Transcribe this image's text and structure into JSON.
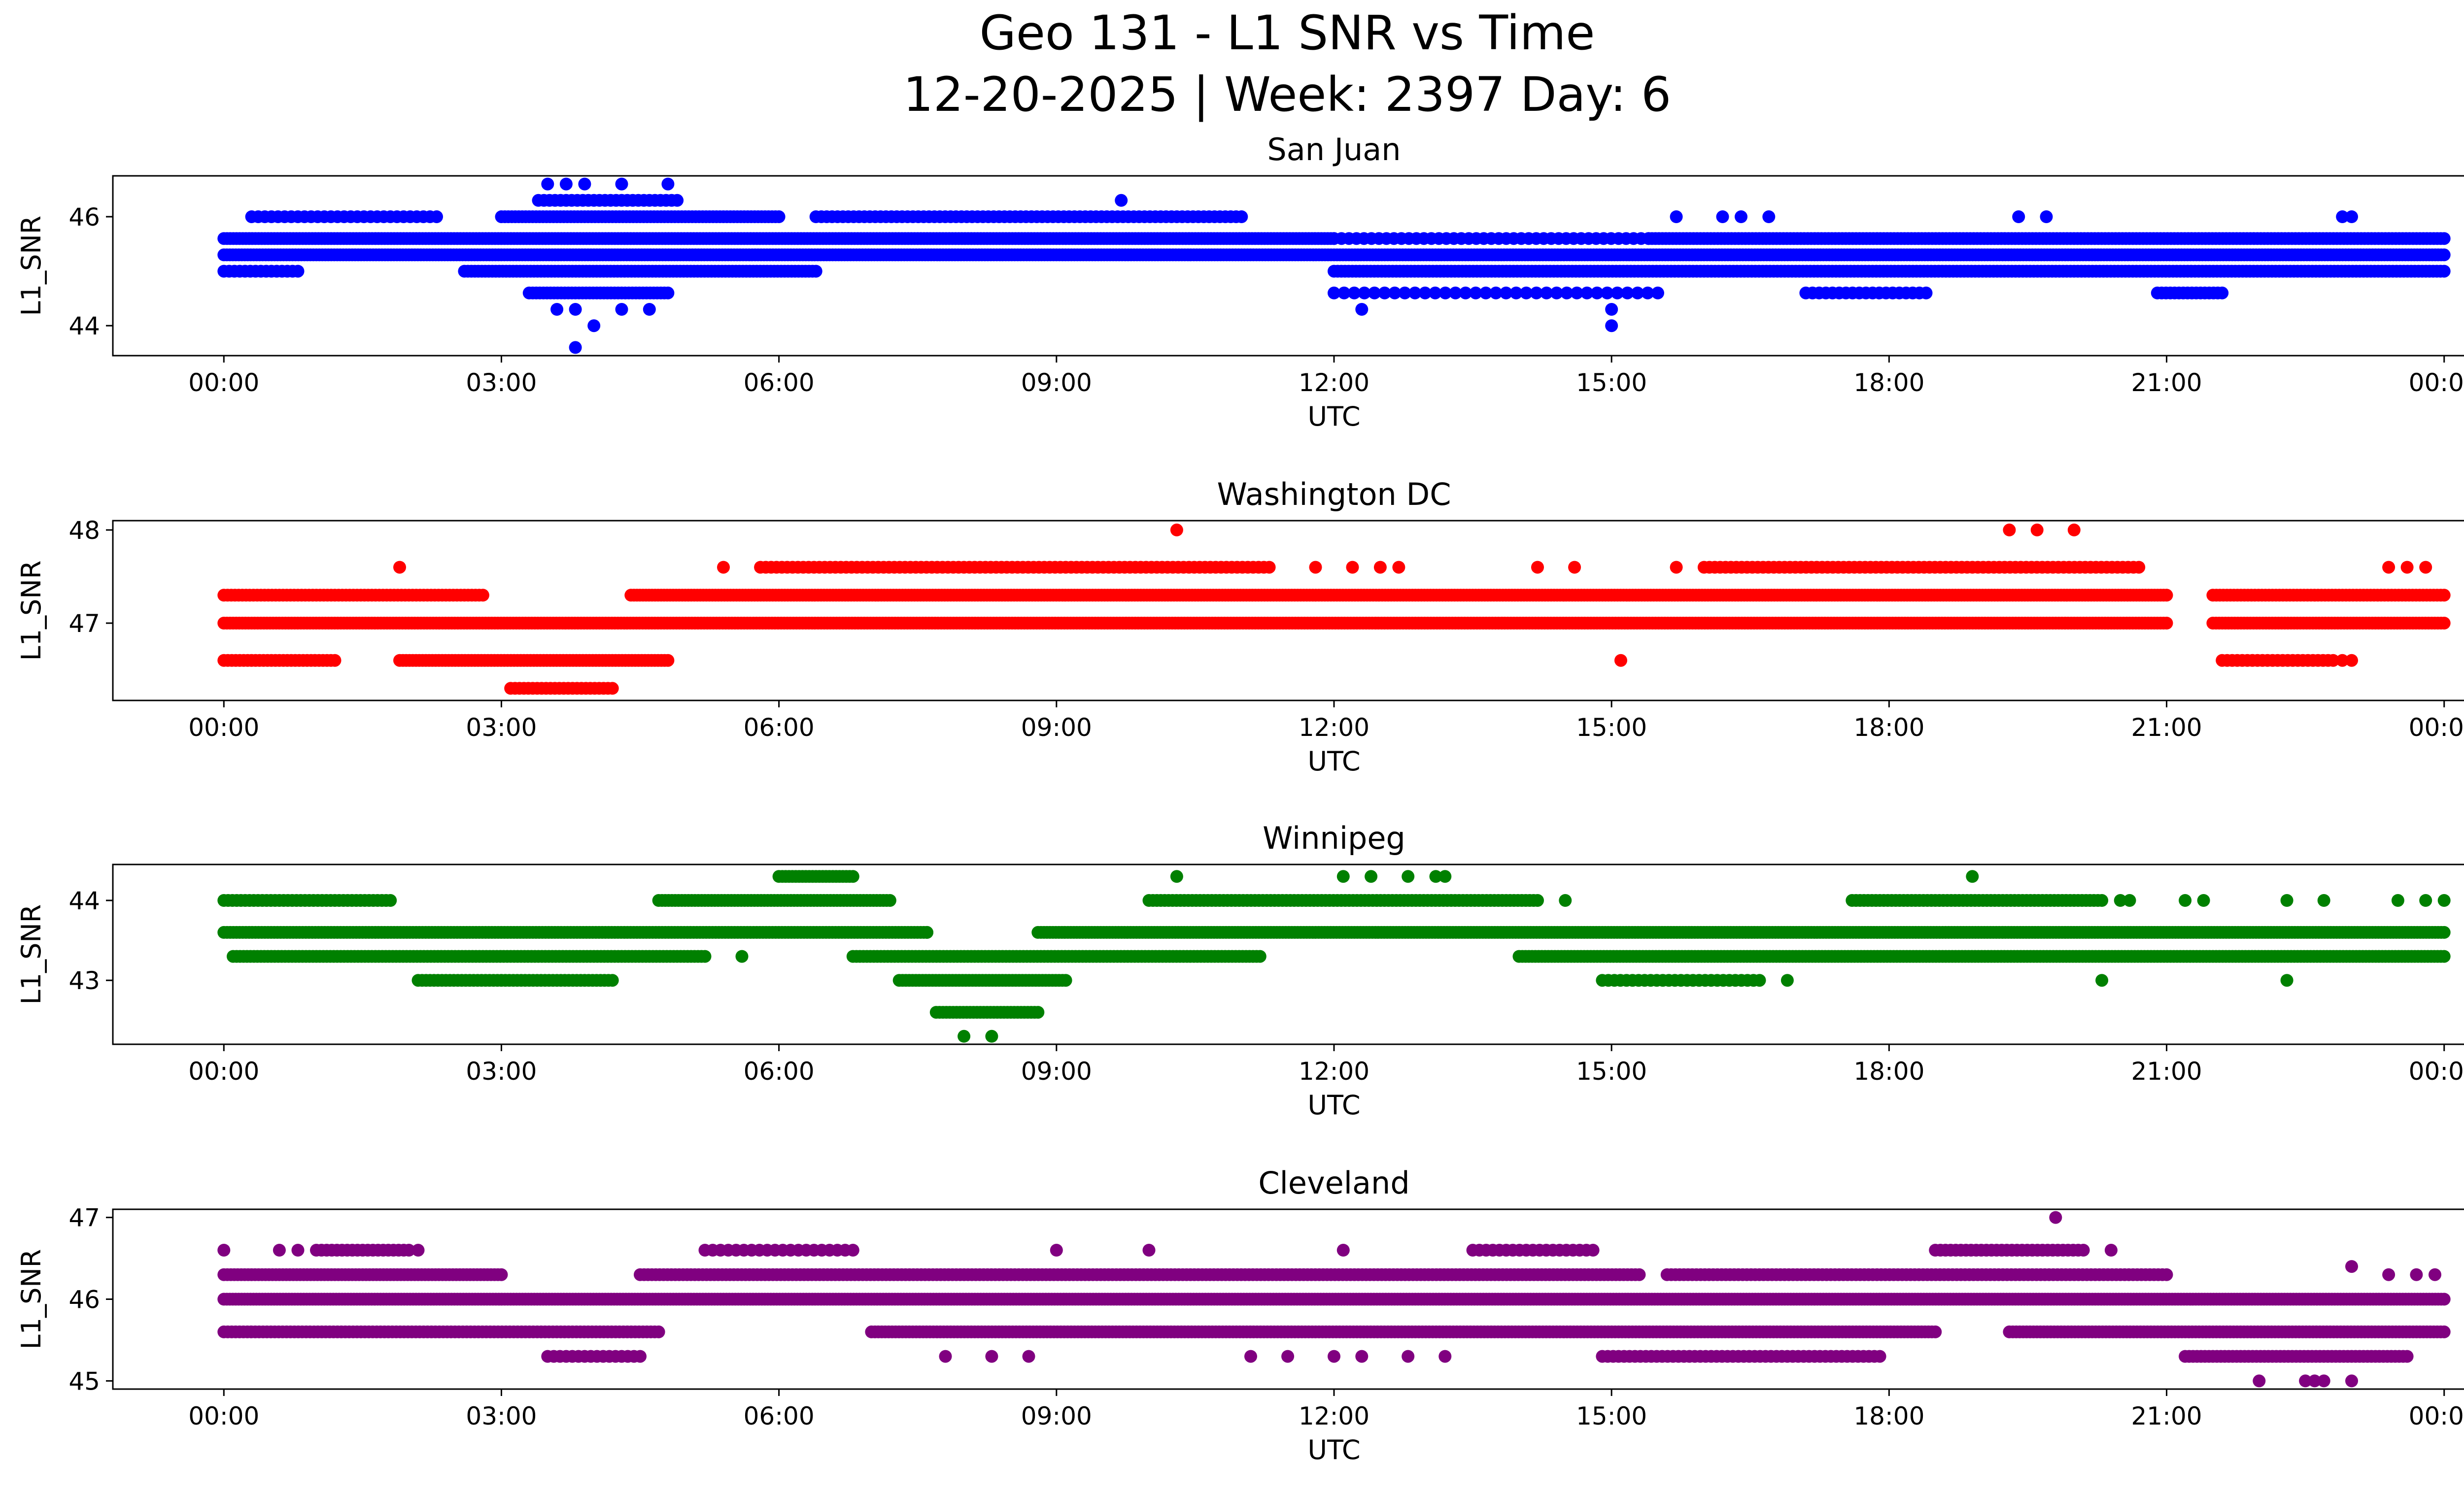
{
  "figure_title_line1": "Geo 131 - L1 SNR vs Time",
  "figure_title_line2": "12-20-2025 | Week: 2397 Day: 6",
  "chart_data": [
    {
      "type": "scatter",
      "title": "San Juan",
      "xlabel": "UTC",
      "ylabel": "L1_SNR",
      "color": "#0000ff",
      "x_unit": "hours",
      "xlim": [
        -1.2,
        25.2
      ],
      "ylim": [
        43.45,
        46.75
      ],
      "x_ticks": [
        0,
        3,
        6,
        9,
        12,
        15,
        18,
        21,
        24
      ],
      "x_tick_labels": [
        "00:00",
        "03:00",
        "06:00",
        "09:00",
        "12:00",
        "15:00",
        "18:00",
        "21:00",
        "00:00"
      ],
      "y_ticks": [
        44,
        46
      ],
      "y_tick_labels": [
        "44",
        "46"
      ],
      "bands": [
        {
          "y": 45.3,
          "start": 0.0,
          "end": 24.0,
          "density": 0.98
        },
        {
          "y": 45.6,
          "start": 0.0,
          "end": 12.0,
          "density": 0.93
        },
        {
          "y": 45.6,
          "start": 12.0,
          "end": 15.4,
          "density": 0.4
        },
        {
          "y": 45.6,
          "start": 15.4,
          "end": 24.0,
          "density": 0.85
        },
        {
          "y": 45.0,
          "start": 0.0,
          "end": 0.8,
          "density": 0.6
        },
        {
          "y": 45.0,
          "start": 2.6,
          "end": 6.4,
          "density": 0.85
        },
        {
          "y": 45.0,
          "start": 12.0,
          "end": 24.0,
          "density": 0.8
        },
        {
          "y": 46.0,
          "start": 0.3,
          "end": 2.3,
          "density": 0.45
        },
        {
          "y": 46.0,
          "start": 3.0,
          "end": 6.0,
          "density": 0.85
        },
        {
          "y": 46.0,
          "start": 6.4,
          "end": 11.0,
          "density": 0.55
        },
        {
          "y": 44.6,
          "start": 3.3,
          "end": 4.8,
          "density": 0.85
        },
        {
          "y": 44.6,
          "start": 12.0,
          "end": 15.5,
          "density": 0.3
        },
        {
          "y": 44.6,
          "start": 17.1,
          "end": 18.4,
          "density": 0.45
        },
        {
          "y": 44.6,
          "start": 20.9,
          "end": 21.6,
          "density": 0.7
        },
        {
          "y": 46.3,
          "start": 3.4,
          "end": 4.9,
          "density": 0.55
        }
      ],
      "points": [
        {
          "x": 3.8,
          "y": 43.6
        },
        {
          "x": 4.0,
          "y": 44.0
        },
        {
          "x": 15.0,
          "y": 44.0
        },
        {
          "x": 15.0,
          "y": 44.3
        },
        {
          "x": 3.6,
          "y": 44.3
        },
        {
          "x": 3.8,
          "y": 44.3
        },
        {
          "x": 4.3,
          "y": 44.3
        },
        {
          "x": 4.6,
          "y": 44.3
        },
        {
          "x": 12.3,
          "y": 44.3
        },
        {
          "x": 3.5,
          "y": 46.6
        },
        {
          "x": 3.7,
          "y": 46.6
        },
        {
          "x": 3.9,
          "y": 46.6
        },
        {
          "x": 4.3,
          "y": 46.6
        },
        {
          "x": 4.8,
          "y": 46.6
        },
        {
          "x": 9.7,
          "y": 46.3
        },
        {
          "x": 15.7,
          "y": 46.0
        },
        {
          "x": 16.2,
          "y": 46.0
        },
        {
          "x": 16.4,
          "y": 46.0
        },
        {
          "x": 16.7,
          "y": 46.0
        },
        {
          "x": 19.4,
          "y": 46.0
        },
        {
          "x": 19.7,
          "y": 46.0
        },
        {
          "x": 22.9,
          "y": 46.0
        },
        {
          "x": 23.0,
          "y": 46.0
        }
      ]
    },
    {
      "type": "scatter",
      "title": "Washington DC",
      "xlabel": "UTC",
      "ylabel": "L1_SNR",
      "color": "#ff0000",
      "x_unit": "hours",
      "xlim": [
        -1.2,
        25.2
      ],
      "ylim": [
        46.17,
        48.1
      ],
      "x_ticks": [
        0,
        3,
        6,
        9,
        12,
        15,
        18,
        21,
        24
      ],
      "x_tick_labels": [
        "00:00",
        "03:00",
        "06:00",
        "09:00",
        "12:00",
        "15:00",
        "18:00",
        "21:00",
        "00:00"
      ],
      "y_ticks": [
        47,
        48
      ],
      "y_tick_labels": [
        "47",
        "48"
      ],
      "bands": [
        {
          "y": 47.0,
          "start": 0.0,
          "end": 21.0,
          "density": 0.95
        },
        {
          "y": 47.0,
          "start": 21.5,
          "end": 24.0,
          "density": 0.95
        },
        {
          "y": 47.3,
          "start": 0.0,
          "end": 2.8,
          "density": 0.8
        },
        {
          "y": 47.3,
          "start": 4.4,
          "end": 21.0,
          "density": 0.97
        },
        {
          "y": 47.3,
          "start": 21.5,
          "end": 24.0,
          "density": 0.85
        },
        {
          "y": 46.6,
          "start": 0.0,
          "end": 1.2,
          "density": 0.75
        },
        {
          "y": 46.6,
          "start": 1.9,
          "end": 4.8,
          "density": 0.9
        },
        {
          "y": 46.6,
          "start": 21.6,
          "end": 22.8,
          "density": 0.6
        },
        {
          "y": 46.3,
          "start": 3.1,
          "end": 4.2,
          "density": 0.7
        },
        {
          "y": 47.6,
          "start": 5.8,
          "end": 11.3,
          "density": 0.55
        },
        {
          "y": 47.6,
          "start": 16.0,
          "end": 20.7,
          "density": 0.55
        }
      ],
      "points": [
        {
          "x": 1.9,
          "y": 47.6
        },
        {
          "x": 5.4,
          "y": 47.6
        },
        {
          "x": 11.8,
          "y": 47.6
        },
        {
          "x": 12.2,
          "y": 47.6
        },
        {
          "x": 12.5,
          "y": 47.6
        },
        {
          "x": 12.7,
          "y": 47.6
        },
        {
          "x": 14.2,
          "y": 47.6
        },
        {
          "x": 14.6,
          "y": 47.6
        },
        {
          "x": 15.7,
          "y": 47.6
        },
        {
          "x": 23.4,
          "y": 47.6
        },
        {
          "x": 23.6,
          "y": 47.6
        },
        {
          "x": 23.8,
          "y": 47.6
        },
        {
          "x": 10.3,
          "y": 48.0
        },
        {
          "x": 19.3,
          "y": 48.0
        },
        {
          "x": 19.6,
          "y": 48.0
        },
        {
          "x": 20.0,
          "y": 48.0
        },
        {
          "x": 15.1,
          "y": 46.6
        },
        {
          "x": 22.9,
          "y": 46.6
        },
        {
          "x": 23.0,
          "y": 46.6
        }
      ]
    },
    {
      "type": "scatter",
      "title": "Winnipeg",
      "xlabel": "UTC",
      "ylabel": "L1_SNR",
      "color": "#008000",
      "x_unit": "hours",
      "xlim": [
        -1.2,
        25.2
      ],
      "ylim": [
        42.2,
        44.45
      ],
      "x_ticks": [
        0,
        3,
        6,
        9,
        12,
        15,
        18,
        21,
        24
      ],
      "x_tick_labels": [
        "00:00",
        "03:00",
        "06:00",
        "09:00",
        "12:00",
        "15:00",
        "18:00",
        "21:00",
        "00:00"
      ],
      "y_ticks": [
        43,
        44
      ],
      "y_tick_labels": [
        "43",
        "44"
      ],
      "bands": [
        {
          "y": 43.6,
          "start": 0.0,
          "end": 7.6,
          "density": 0.93
        },
        {
          "y": 43.6,
          "start": 8.8,
          "end": 24.0,
          "density": 0.98
        },
        {
          "y": 43.3,
          "start": 0.1,
          "end": 5.2,
          "density": 0.85
        },
        {
          "y": 43.3,
          "start": 6.8,
          "end": 11.2,
          "density": 0.85
        },
        {
          "y": 43.3,
          "start": 14.0,
          "end": 24.0,
          "density": 0.9
        },
        {
          "y": 44.0,
          "start": 0.0,
          "end": 1.8,
          "density": 0.7
        },
        {
          "y": 44.0,
          "start": 4.7,
          "end": 7.2,
          "density": 0.9
        },
        {
          "y": 44.0,
          "start": 10.0,
          "end": 14.2,
          "density": 0.75
        },
        {
          "y": 44.0,
          "start": 17.6,
          "end": 20.3,
          "density": 0.75
        },
        {
          "y": 43.0,
          "start": 2.1,
          "end": 4.2,
          "density": 0.75
        },
        {
          "y": 43.0,
          "start": 7.3,
          "end": 9.1,
          "density": 0.9
        },
        {
          "y": 43.0,
          "start": 14.9,
          "end": 16.6,
          "density": 0.5
        },
        {
          "y": 42.6,
          "start": 7.7,
          "end": 8.8,
          "density": 0.9
        },
        {
          "y": 44.3,
          "start": 6.0,
          "end": 6.8,
          "density": 0.9
        }
      ],
      "points": [
        {
          "x": 8.0,
          "y": 42.3
        },
        {
          "x": 8.3,
          "y": 42.3
        },
        {
          "x": 10.3,
          "y": 44.3
        },
        {
          "x": 12.1,
          "y": 44.3
        },
        {
          "x": 12.4,
          "y": 44.3
        },
        {
          "x": 12.8,
          "y": 44.3
        },
        {
          "x": 13.1,
          "y": 44.3
        },
        {
          "x": 13.2,
          "y": 44.3
        },
        {
          "x": 18.9,
          "y": 44.3
        },
        {
          "x": 14.5,
          "y": 44.0
        },
        {
          "x": 20.5,
          "y": 44.0
        },
        {
          "x": 20.6,
          "y": 44.0
        },
        {
          "x": 21.2,
          "y": 44.0
        },
        {
          "x": 21.4,
          "y": 44.0
        },
        {
          "x": 22.3,
          "y": 44.0
        },
        {
          "x": 22.7,
          "y": 44.0
        },
        {
          "x": 23.5,
          "y": 44.0
        },
        {
          "x": 23.8,
          "y": 44.0
        },
        {
          "x": 24.0,
          "y": 44.0
        },
        {
          "x": 20.3,
          "y": 43.0
        },
        {
          "x": 22.3,
          "y": 43.0
        },
        {
          "x": 16.9,
          "y": 43.0
        },
        {
          "x": 7.6,
          "y": 43.6
        },
        {
          "x": 5.6,
          "y": 43.3
        }
      ]
    },
    {
      "type": "scatter",
      "title": "Cleveland",
      "xlabel": "UTC",
      "ylabel": "L1_SNR",
      "color": "#800080",
      "x_unit": "hours",
      "xlim": [
        -1.2,
        25.2
      ],
      "ylim": [
        44.9,
        47.1
      ],
      "x_ticks": [
        0,
        3,
        6,
        9,
        12,
        15,
        18,
        21,
        24
      ],
      "x_tick_labels": [
        "00:00",
        "03:00",
        "06:00",
        "09:00",
        "12:00",
        "15:00",
        "18:00",
        "21:00",
        "00:00"
      ],
      "y_ticks": [
        45,
        46,
        47
      ],
      "y_tick_labels": [
        "45",
        "46",
        "47"
      ],
      "bands": [
        {
          "y": 46.0,
          "start": 0.0,
          "end": 24.0,
          "density": 0.99
        },
        {
          "y": 46.3,
          "start": 0.0,
          "end": 3.0,
          "density": 0.85
        },
        {
          "y": 46.3,
          "start": 4.5,
          "end": 15.3,
          "density": 0.75
        },
        {
          "y": 46.3,
          "start": 15.6,
          "end": 21.0,
          "density": 0.7
        },
        {
          "y": 45.6,
          "start": 0.0,
          "end": 4.7,
          "density": 0.75
        },
        {
          "y": 45.6,
          "start": 7.0,
          "end": 18.5,
          "density": 0.85
        },
        {
          "y": 45.6,
          "start": 19.3,
          "end": 24.0,
          "density": 0.85
        },
        {
          "y": 45.3,
          "start": 3.5,
          "end": 4.5,
          "density": 0.5
        },
        {
          "y": 45.3,
          "start": 14.9,
          "end": 17.9,
          "density": 0.55
        },
        {
          "y": 45.3,
          "start": 21.2,
          "end": 23.6,
          "density": 0.75
        },
        {
          "y": 46.6,
          "start": 1.0,
          "end": 2.0,
          "density": 0.6
        },
        {
          "y": 46.6,
          "start": 5.2,
          "end": 6.8,
          "density": 0.4
        },
        {
          "y": 46.6,
          "start": 13.5,
          "end": 14.8,
          "density": 0.45
        },
        {
          "y": 46.6,
          "start": 18.5,
          "end": 20.1,
          "density": 0.6
        }
      ],
      "points": [
        {
          "x": 0.0,
          "y": 46.6
        },
        {
          "x": 0.6,
          "y": 46.6
        },
        {
          "x": 0.8,
          "y": 46.6
        },
        {
          "x": 2.1,
          "y": 46.6
        },
        {
          "x": 9.0,
          "y": 46.6
        },
        {
          "x": 10.0,
          "y": 46.6
        },
        {
          "x": 12.1,
          "y": 46.6
        },
        {
          "x": 20.4,
          "y": 46.6
        },
        {
          "x": 19.8,
          "y": 47.0
        },
        {
          "x": 22.0,
          "y": 45.0
        },
        {
          "x": 22.5,
          "y": 45.0
        },
        {
          "x": 22.6,
          "y": 45.0
        },
        {
          "x": 22.7,
          "y": 45.0
        },
        {
          "x": 23.0,
          "y": 45.0
        },
        {
          "x": 7.8,
          "y": 45.3
        },
        {
          "x": 8.3,
          "y": 45.3
        },
        {
          "x": 8.7,
          "y": 45.3
        },
        {
          "x": 11.1,
          "y": 45.3
        },
        {
          "x": 11.5,
          "y": 45.3
        },
        {
          "x": 12.0,
          "y": 45.3
        },
        {
          "x": 12.3,
          "y": 45.3
        },
        {
          "x": 12.8,
          "y": 45.3
        },
        {
          "x": 13.2,
          "y": 45.3
        },
        {
          "x": 23.4,
          "y": 46.3
        },
        {
          "x": 23.7,
          "y": 46.3
        },
        {
          "x": 23.9,
          "y": 46.3
        },
        {
          "x": 23.0,
          "y": 46.4
        }
      ]
    }
  ]
}
